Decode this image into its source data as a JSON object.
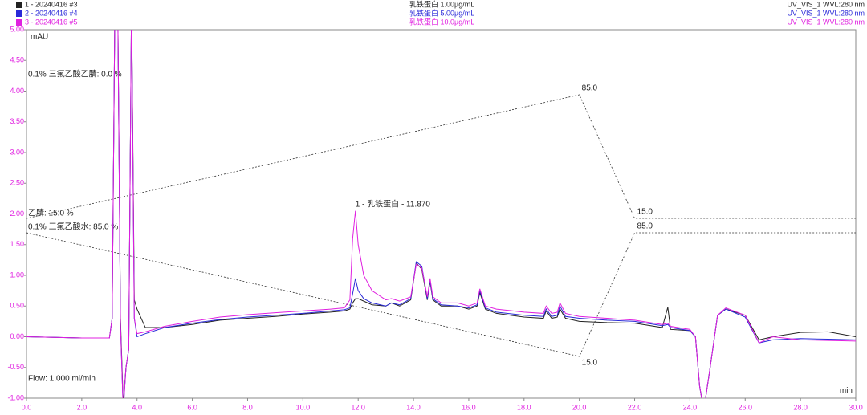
{
  "chart_data": {
    "type": "line",
    "y_unit": "mAU",
    "x_unit": "min",
    "flow": "Flow: 1.000 ml/min",
    "peak_label": {
      "text": "1 - 乳铁蛋白 - 11.870",
      "x": 11.87
    },
    "x": [
      0,
      1,
      2,
      3,
      3.1,
      3.2,
      3.3,
      3.4,
      3.5,
      3.6,
      3.7,
      3.8,
      3.9,
      4.0,
      4.3,
      5,
      6,
      7,
      8,
      9,
      10,
      11,
      11.5,
      11.7,
      11.8,
      11.9,
      12.0,
      12.2,
      12.5,
      13,
      13.2,
      13.5,
      13.9,
      14.1,
      14.3,
      14.5,
      14.6,
      14.7,
      15,
      15.6,
      16,
      16.3,
      16.4,
      16.6,
      17,
      18,
      18.7,
      18.8,
      19,
      19.2,
      19.3,
      19.5,
      20,
      21,
      22,
      23,
      23.2,
      23.3,
      24,
      24.2,
      24.35,
      24.5,
      24.7,
      25,
      25.3,
      26,
      26.5,
      27,
      28,
      29,
      30
    ],
    "series": [
      {
        "name": "1 - 20240416 #3",
        "sample": "乳铁蛋白 1.00µg/mL",
        "channel": "UV_VIS_1 WVL:280 nm",
        "color": "#222222",
        "values": [
          0,
          -0.01,
          -0.02,
          -0.02,
          0.3,
          5.5,
          5.5,
          0.3,
          -1.1,
          -0.5,
          -0.2,
          5.5,
          0.6,
          0.45,
          0.15,
          0.15,
          0.2,
          0.27,
          0.3,
          0.33,
          0.37,
          0.4,
          0.42,
          0.45,
          0.55,
          0.62,
          0.62,
          0.58,
          0.52,
          0.5,
          0.55,
          0.5,
          0.6,
          1.2,
          1.1,
          0.6,
          0.9,
          0.6,
          0.5,
          0.5,
          0.45,
          0.5,
          0.72,
          0.45,
          0.38,
          0.32,
          0.3,
          0.42,
          0.3,
          0.32,
          0.45,
          0.3,
          0.25,
          0.23,
          0.22,
          0.15,
          0.48,
          0.12,
          0.1,
          0.0,
          -0.8,
          -1.2,
          -0.6,
          0.35,
          0.45,
          0.35,
          -0.05,
          0.0,
          0.07,
          0.08,
          0.0
        ]
      },
      {
        "name": "2 - 20240416 #4",
        "sample": "乳铁蛋白 5.00µg/mL",
        "channel": "UV_VIS_1 WVL:280 nm",
        "color": "#2a2ad8",
        "values": [
          0,
          -0.01,
          -0.02,
          -0.02,
          0.3,
          5.5,
          5.5,
          0.2,
          -1.2,
          -0.5,
          -0.2,
          5.5,
          0.3,
          0.0,
          0.05,
          0.15,
          0.22,
          0.28,
          0.32,
          0.35,
          0.38,
          0.42,
          0.44,
          0.47,
          0.7,
          0.95,
          0.75,
          0.62,
          0.55,
          0.5,
          0.55,
          0.52,
          0.62,
          1.22,
          1.15,
          0.62,
          0.92,
          0.62,
          0.52,
          0.5,
          0.47,
          0.52,
          0.75,
          0.47,
          0.4,
          0.35,
          0.33,
          0.45,
          0.33,
          0.35,
          0.5,
          0.33,
          0.3,
          0.27,
          0.25,
          0.18,
          0.2,
          0.15,
          0.1,
          0.0,
          -0.8,
          -1.2,
          -0.6,
          0.35,
          0.45,
          0.32,
          -0.1,
          -0.05,
          -0.03,
          -0.04,
          -0.05
        ]
      },
      {
        "name": "3 - 20240416 #5",
        "sample": "乳铁蛋白 10.0µg/mL",
        "channel": "UV_VIS_1 WVL:280 nm",
        "color": "#e020e0",
        "values": [
          0,
          -0.01,
          -0.02,
          -0.02,
          0.3,
          5.5,
          5.5,
          0.2,
          -1.2,
          -0.5,
          -0.2,
          5.5,
          0.3,
          0.05,
          0.08,
          0.17,
          0.25,
          0.32,
          0.36,
          0.39,
          0.42,
          0.45,
          0.47,
          0.6,
          1.6,
          2.05,
          1.5,
          1.0,
          0.75,
          0.6,
          0.62,
          0.58,
          0.65,
          1.18,
          1.12,
          0.65,
          0.95,
          0.65,
          0.55,
          0.55,
          0.5,
          0.55,
          0.78,
          0.5,
          0.45,
          0.4,
          0.38,
          0.5,
          0.38,
          0.4,
          0.55,
          0.38,
          0.33,
          0.3,
          0.27,
          0.2,
          0.22,
          0.17,
          0.12,
          0.0,
          -0.8,
          -1.2,
          -0.6,
          0.35,
          0.47,
          0.35,
          -0.1,
          0.0,
          -0.05,
          -0.06,
          -0.07
        ]
      }
    ],
    "xlim": [
      0,
      30
    ],
    "xticks": [
      {
        "value": 0,
        "label": "0.0"
      },
      {
        "value": 2,
        "label": "2.0"
      },
      {
        "value": 4,
        "label": "4.0"
      },
      {
        "value": 6,
        "label": "6.0"
      },
      {
        "value": 8,
        "label": "8.0"
      },
      {
        "value": 10,
        "label": "10.0"
      },
      {
        "value": 12,
        "label": "12.0"
      },
      {
        "value": 14,
        "label": "14.0"
      },
      {
        "value": 16,
        "label": "16.0"
      },
      {
        "value": 18,
        "label": "18.0"
      },
      {
        "value": 20,
        "label": "20.0"
      },
      {
        "value": 22,
        "label": "22.0"
      },
      {
        "value": 24,
        "label": "24.0"
      },
      {
        "value": 26,
        "label": "26.0"
      },
      {
        "value": 28,
        "label": "28.0"
      },
      {
        "value": 30,
        "label": "30.0"
      }
    ],
    "ylim": [
      -1,
      5
    ],
    "yticks": [
      {
        "value": -1,
        "label": "-1.00"
      },
      {
        "value": -0.5,
        "label": "-0.50"
      },
      {
        "value": 0,
        "label": "0.00"
      },
      {
        "value": 0.5,
        "label": "0.50"
      },
      {
        "value": 1,
        "label": "1.00"
      },
      {
        "value": 1.5,
        "label": "1.50"
      },
      {
        "value": 2,
        "label": "2.00"
      },
      {
        "value": 2.5,
        "label": "2.50"
      },
      {
        "value": 3,
        "label": "3.00"
      },
      {
        "value": 3.5,
        "label": "3.50"
      },
      {
        "value": 4,
        "label": "4.00"
      },
      {
        "value": 4.5,
        "label": "4.50"
      },
      {
        "value": 5,
        "label": "5.00"
      }
    ],
    "gradient": [
      {
        "label": "0.1% 三氟乙酸乙腈: 0.0 %"
      },
      {
        "label": "乙腈: 15.0 %",
        "x": [
          0,
          20,
          22,
          30
        ],
        "values": [
          15,
          85,
          15,
          15
        ],
        "point_labels": [
          null,
          "85.0",
          "15.0",
          null
        ]
      },
      {
        "label": "0.1% 三氟乙酸水: 85.0 %",
        "x": [
          0,
          20,
          22,
          30
        ],
        "values": [
          85,
          15,
          85,
          85
        ],
        "point_labels": [
          null,
          "15.0",
          "85.0",
          null
        ]
      }
    ]
  }
}
